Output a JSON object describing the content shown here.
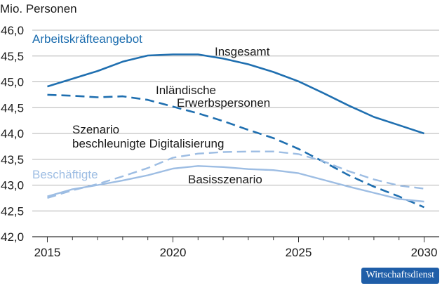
{
  "colors": {
    "dark_blue": "#1f6fb0",
    "light_blue": "#9dbde3",
    "grid": "#b3b3b3",
    "axis": "#333333",
    "badge": "#1f5ea8"
  },
  "chart_data": {
    "type": "line",
    "ylabel": "Mio. Personen",
    "xlabel": "",
    "xlim": [
      2014.4,
      2030.6
    ],
    "ylim": [
      42.0,
      46.0
    ],
    "yticks": [
      "46,0",
      "45,5",
      "45,0",
      "44,5",
      "44,0",
      "43,5",
      "43,0",
      "42,5",
      "42,0"
    ],
    "ytick_values": [
      46.0,
      45.5,
      45.0,
      44.5,
      44.0,
      43.5,
      43.0,
      42.5,
      42.0
    ],
    "xticks": [
      "2015",
      "2020",
      "2025",
      "2030"
    ],
    "xtick_values": [
      2015,
      2020,
      2025,
      2030
    ],
    "grid": "horizontal",
    "group_labels": [
      "Arbeitskräfteangebot",
      "Beschäftigte"
    ],
    "annotations": [
      {
        "id": "insgesamt",
        "text": "Insgesamt"
      },
      {
        "id": "inl1",
        "text": "Inländische"
      },
      {
        "id": "inl2",
        "text": "Erwerbspersonen"
      },
      {
        "id": "sz1",
        "text": "Szenario"
      },
      {
        "id": "sz2",
        "text": "beschleunigte Digitalisierung"
      },
      {
        "id": "basis",
        "text": "Basisszenario"
      }
    ],
    "series": [
      {
        "group": "Arbeitskräfteangebot",
        "scenario": "solid",
        "color": "#1f6fb0",
        "x": [
          2015,
          2016,
          2017,
          2018,
          2019,
          2020,
          2021,
          2022,
          2023,
          2024,
          2025,
          2026,
          2027,
          2028,
          2029,
          2030
        ],
        "y": [
          44.91,
          45.06,
          45.21,
          45.39,
          45.51,
          45.53,
          45.53,
          45.45,
          45.34,
          45.19,
          45.01,
          44.78,
          44.54,
          44.32,
          44.16,
          44.0
        ]
      },
      {
        "group": "Arbeitskräfteangebot",
        "scenario": "dashed",
        "color": "#1f6fb0",
        "x": [
          2015,
          2016,
          2017,
          2018,
          2019,
          2020,
          2021,
          2022,
          2023,
          2024,
          2025,
          2026,
          2027,
          2028,
          2029,
          2030
        ],
        "y": [
          44.75,
          44.73,
          44.7,
          44.72,
          44.65,
          44.52,
          44.39,
          44.24,
          44.07,
          43.91,
          43.7,
          43.45,
          43.19,
          42.97,
          42.78,
          42.57
        ]
      },
      {
        "group": "Beschäftigte",
        "scenario": "solid",
        "color": "#9dbde3",
        "x": [
          2015,
          2016,
          2017,
          2018,
          2019,
          2020,
          2021,
          2022,
          2023,
          2024,
          2025,
          2026,
          2027,
          2028,
          2029,
          2030
        ],
        "y": [
          42.78,
          42.92,
          43.0,
          43.09,
          43.19,
          43.32,
          43.37,
          43.35,
          43.31,
          43.29,
          43.23,
          43.1,
          42.97,
          42.85,
          42.73,
          42.68
        ]
      },
      {
        "group": "Beschäftigte",
        "scenario": "dashed",
        "color": "#9dbde3",
        "x": [
          2015,
          2016,
          2017,
          2018,
          2019,
          2020,
          2021,
          2022,
          2023,
          2024,
          2025,
          2026,
          2027,
          2028,
          2029,
          2030
        ],
        "y": [
          42.75,
          42.9,
          43.02,
          43.17,
          43.33,
          43.53,
          43.61,
          43.64,
          43.65,
          43.65,
          43.6,
          43.46,
          43.27,
          43.11,
          42.99,
          42.93
        ]
      }
    ]
  },
  "badge": {
    "label": "Wirtschaftsdienst"
  }
}
